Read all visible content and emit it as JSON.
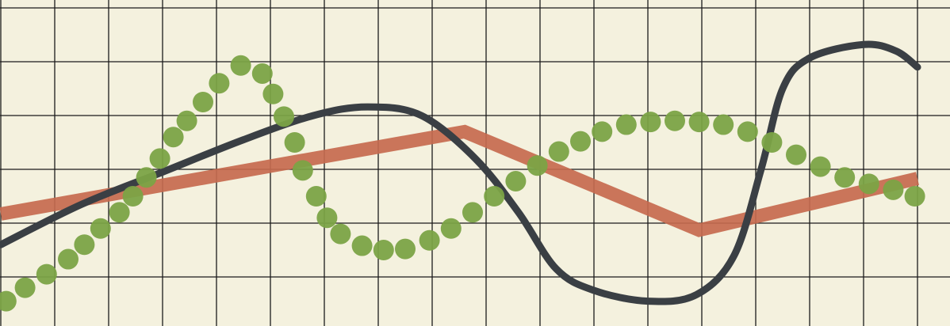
{
  "chart_data": {
    "type": "line",
    "title": "",
    "xlabel": "",
    "ylabel": "",
    "grid": true,
    "grid_columns": 17,
    "grid_rows": 6,
    "xlim": [
      0,
      17
    ],
    "ylim": [
      0,
      6
    ],
    "background": "#f4f1de",
    "grid_color": "#1b1b1b",
    "series": [
      {
        "style": "thick-line",
        "color": "#c66a4e",
        "points": [
          [
            0,
            2.17
          ],
          [
            8.6,
            3.7
          ],
          [
            12.95,
            1.87
          ],
          [
            17,
            2.83
          ]
        ]
      },
      {
        "style": "curve",
        "color": "#3a3f44",
        "points": [
          [
            0,
            1.6
          ],
          [
            1.5,
            2.35
          ],
          [
            3,
            2.95
          ],
          [
            4.5,
            3.55
          ],
          [
            5.8,
            4.0
          ],
          [
            6.8,
            4.16
          ],
          [
            7.8,
            4.0
          ],
          [
            8.8,
            3.2
          ],
          [
            9.6,
            2.2
          ],
          [
            10.3,
            1.15
          ],
          [
            11,
            0.75
          ],
          [
            12,
            0.55
          ],
          [
            12.9,
            0.67
          ],
          [
            13.6,
            1.4
          ],
          [
            14.1,
            3.0
          ],
          [
            14.5,
            4.5
          ],
          [
            15,
            5.07
          ],
          [
            16,
            5.32
          ],
          [
            16.6,
            5.2
          ],
          [
            17,
            4.9
          ]
        ]
      },
      {
        "style": "dots",
        "color": "#7ba346",
        "points": [
          [
            0.1,
            0.55
          ],
          [
            0.45,
            0.8
          ],
          [
            0.85,
            1.05
          ],
          [
            1.25,
            1.33
          ],
          [
            1.55,
            1.6
          ],
          [
            1.85,
            1.9
          ],
          [
            2.2,
            2.2
          ],
          [
            2.45,
            2.5
          ],
          [
            2.7,
            2.85
          ],
          [
            2.95,
            3.2
          ],
          [
            3.2,
            3.6
          ],
          [
            3.45,
            3.9
          ],
          [
            3.75,
            4.25
          ],
          [
            4.05,
            4.6
          ],
          [
            4.45,
            4.93
          ],
          [
            4.85,
            4.78
          ],
          [
            5.05,
            4.4
          ],
          [
            5.25,
            3.98
          ],
          [
            5.45,
            3.5
          ],
          [
            5.6,
            2.98
          ],
          [
            5.85,
            2.5
          ],
          [
            6.05,
            2.1
          ],
          [
            6.3,
            1.8
          ],
          [
            6.7,
            1.58
          ],
          [
            7.1,
            1.5
          ],
          [
            7.5,
            1.52
          ],
          [
            7.95,
            1.68
          ],
          [
            8.35,
            1.9
          ],
          [
            8.75,
            2.2
          ],
          [
            9.15,
            2.5
          ],
          [
            9.55,
            2.78
          ],
          [
            9.95,
            3.07
          ],
          [
            10.35,
            3.33
          ],
          [
            10.75,
            3.52
          ],
          [
            11.15,
            3.7
          ],
          [
            11.6,
            3.83
          ],
          [
            12.05,
            3.88
          ],
          [
            12.5,
            3.9
          ],
          [
            12.95,
            3.88
          ],
          [
            13.4,
            3.83
          ],
          [
            13.85,
            3.7
          ],
          [
            14.3,
            3.5
          ],
          [
            14.75,
            3.27
          ],
          [
            15.2,
            3.05
          ],
          [
            15.65,
            2.85
          ],
          [
            16.1,
            2.73
          ],
          [
            16.55,
            2.62
          ],
          [
            16.95,
            2.5
          ]
        ]
      }
    ]
  }
}
